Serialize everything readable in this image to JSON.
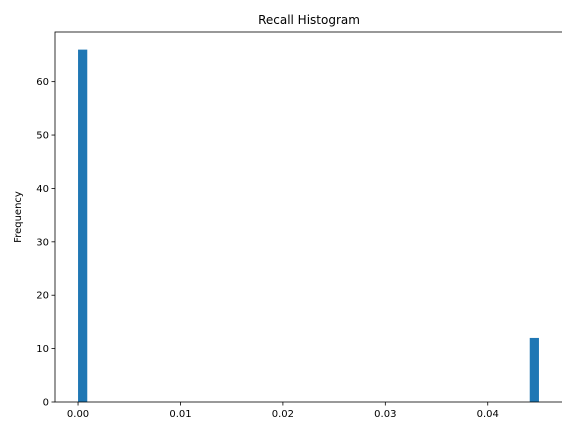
{
  "chart_data": {
    "type": "bar",
    "title": "Recall Histogram",
    "xlabel": "",
    "ylabel": "Frequency",
    "bins": [
      {
        "x0": 0.0,
        "x1": 0.0009,
        "count": 66
      },
      {
        "x0": 0.0441,
        "x1": 0.045,
        "count": 12
      }
    ],
    "xlim": [
      -0.00225,
      0.04725
    ],
    "ylim": [
      0,
      69.3
    ],
    "xticks": [
      {
        "value": 0.0,
        "label": "0.00"
      },
      {
        "value": 0.01,
        "label": "0.01"
      },
      {
        "value": 0.02,
        "label": "0.02"
      },
      {
        "value": 0.03,
        "label": "0.03"
      },
      {
        "value": 0.04,
        "label": "0.04"
      }
    ],
    "yticks": [
      {
        "value": 0,
        "label": "0"
      },
      {
        "value": 10,
        "label": "10"
      },
      {
        "value": 20,
        "label": "20"
      },
      {
        "value": 30,
        "label": "30"
      },
      {
        "value": 40,
        "label": "40"
      },
      {
        "value": 50,
        "label": "50"
      },
      {
        "value": 60,
        "label": "60"
      }
    ],
    "bar_color": "#1f77b4",
    "grid": false,
    "legend": "none"
  }
}
